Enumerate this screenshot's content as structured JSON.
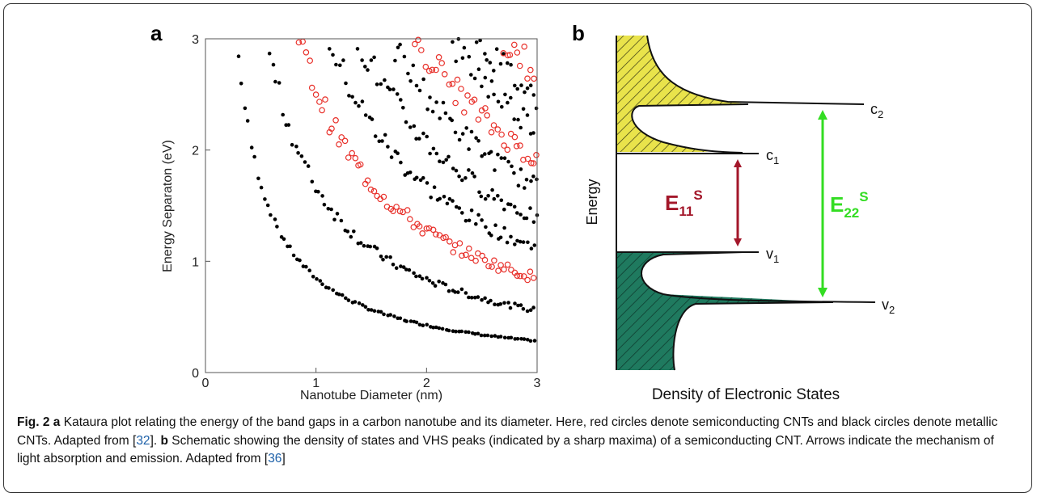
{
  "panel_a_label": "a",
  "panel_b_label": "b",
  "chart_data": {
    "type": "scatter",
    "xlabel": "Nanotube Diameter (nm)",
    "ylabel": "Energy Separaton (eV)",
    "xlim": [
      0,
      3
    ],
    "ylim": [
      0,
      3
    ],
    "xticks": [
      "0",
      "1",
      "2",
      "3"
    ],
    "yticks": [
      "0",
      "1",
      "2",
      "3"
    ],
    "grid": false,
    "colors": {
      "semiconducting": "#e8302a",
      "metallic": "#000000"
    },
    "series": [
      {
        "marker": "filled-circle",
        "color": "#000000",
        "band_coefficient_eV_nm": 0.85,
        "x_range": [
          0.3,
          3.0
        ]
      },
      {
        "marker": "filled-circle",
        "color": "#000000",
        "band_coefficient_eV_nm": 1.67,
        "x_range": [
          0.55,
          3.0
        ]
      },
      {
        "marker": "filled-circle",
        "color": "#000000",
        "band_coefficient_eV_nm": 3.35,
        "x_range": [
          1.1,
          3.0
        ]
      },
      {
        "marker": "open-circle",
        "color": "#e8302a",
        "band_coefficient_eV_nm": 2.55,
        "x_range": [
          0.85,
          3.0
        ]
      },
      {
        "marker": "filled-circle",
        "color": "#000000",
        "band_coefficient_eV_nm": 4.15,
        "x_range": [
          1.38,
          3.0
        ]
      },
      {
        "marker": "filled-circle",
        "color": "#000000",
        "band_coefficient_eV_nm": 5.0,
        "x_range": [
          1.65,
          3.0
        ]
      },
      {
        "marker": "open-circle",
        "color": "#e8302a",
        "band_coefficient_eV_nm": 5.75,
        "x_range": [
          1.9,
          3.0
        ]
      },
      {
        "marker": "filled-circle",
        "color": "#000000",
        "band_coefficient_eV_nm": 6.6,
        "x_range": [
          2.2,
          3.0
        ]
      },
      {
        "marker": "filled-circle",
        "color": "#000000",
        "band_coefficient_eV_nm": 7.4,
        "x_range": [
          2.46,
          3.0
        ]
      },
      {
        "marker": "open-circle",
        "color": "#e8302a",
        "band_coefficient_eV_nm": 8.1,
        "x_range": [
          2.7,
          3.0
        ]
      }
    ]
  },
  "diagram": {
    "y_axis_label": "Energy",
    "x_axis_label": "Density of Electronic States",
    "levels": {
      "c2": {
        "base": "c",
        "sub": "2"
      },
      "c1": {
        "base": "c",
        "sub": "1"
      },
      "v1": {
        "base": "v",
        "sub": "1"
      },
      "v2": {
        "base": "v",
        "sub": "2"
      }
    },
    "e11": {
      "base": "E",
      "sub": "11",
      "sup": "S"
    },
    "e22": {
      "base": "E",
      "sub": "22",
      "sup": "S"
    },
    "colors": {
      "conduction_fill": "#e9e34b",
      "valence_fill": "#1f7a5f",
      "e11_arrow": "#a3172a",
      "e22_arrow": "#33dd22"
    }
  },
  "caption": {
    "fig_label": "Fig. 2",
    "a_label": "a",
    "a_text": "Kataura plot relating the energy of the band gaps in a carbon nanotube and its diameter. Here, red circles denote semiconducting CNTs and black circles denote metallic CNTs. Adapted from [",
    "a_ref": "32",
    "a_end": "]. ",
    "b_label": "b",
    "b_text": "Schematic showing the density of states and VHS peaks (indicated by a sharp maxima) of a semiconducting CNT. Arrows indicate the mechanism of light absorption and emission. Adapted from [",
    "b_ref": "36",
    "b_end": "]"
  }
}
